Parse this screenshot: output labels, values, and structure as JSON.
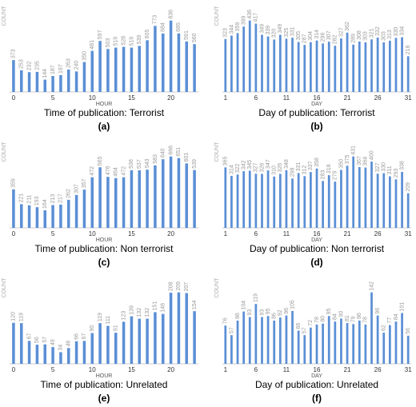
{
  "chart_data": [
    {
      "type": "bar",
      "title": "Time of publication: Terrorist",
      "caption": "(a)",
      "x_label": "HOUR",
      "y_label": "COUNT",
      "color": "#5b8fd6",
      "categories": [
        "0",
        null,
        null,
        null,
        null,
        "5",
        null,
        null,
        null,
        null,
        "10",
        null,
        null,
        null,
        null,
        "15",
        null,
        null,
        null,
        null,
        "20",
        null,
        null,
        null
      ],
      "values": [
        373,
        253,
        232,
        235,
        144,
        187,
        197,
        263,
        240,
        350,
        481,
        597,
        503,
        519,
        528,
        519,
        539,
        605,
        773,
        684,
        836,
        685,
        591,
        560
      ]
    },
    {
      "type": "bar",
      "title": "Day of publication: Terrorist",
      "caption": "(b)",
      "x_label": "DAY",
      "y_label": "COUNT",
      "color": "#5b8fd6",
      "categories": [
        "1",
        null,
        null,
        null,
        null,
        "6",
        null,
        null,
        null,
        null,
        "11",
        null,
        null,
        null,
        null,
        "16",
        null,
        null,
        null,
        null,
        "21",
        null,
        null,
        null,
        null,
        "26",
        null,
        null,
        null,
        null,
        "31"
      ],
      "values": [
        323,
        344,
        359,
        399,
        436,
        417,
        349,
        339,
        320,
        349,
        325,
        331,
        305,
        287,
        304,
        314,
        296,
        307,
        282,
        327,
        362,
        289,
        308,
        303,
        321,
        332,
        303,
        313,
        330,
        334,
        218
      ]
    },
    {
      "type": "bar",
      "title": "Time of publication: Non terrorist",
      "caption": "(c)",
      "x_label": "HOUR",
      "y_label": "COUNT",
      "color": "#5b8fd6",
      "categories": [
        "0",
        null,
        null,
        null,
        null,
        "5",
        null,
        null,
        null,
        null,
        "10",
        null,
        null,
        null,
        null,
        "15",
        null,
        null,
        null,
        null,
        "20",
        null,
        null,
        null
      ],
      "values": [
        359,
        221,
        211,
        193,
        164,
        213,
        217,
        262,
        307,
        357,
        472,
        565,
        476,
        464,
        472,
        538,
        537,
        543,
        583,
        640,
        666,
        651,
        601,
        539
      ]
    },
    {
      "type": "bar",
      "title": "Day of publication: Non terrorist",
      "caption": "(d)",
      "x_label": "DAY",
      "y_label": "COUNT",
      "color": "#5b8fd6",
      "categories": [
        "1",
        null,
        null,
        null,
        null,
        "6",
        null,
        null,
        null,
        null,
        "11",
        null,
        null,
        null,
        null,
        "16",
        null,
        null,
        null,
        null,
        "21",
        null,
        null,
        null,
        null,
        "26",
        null,
        null,
        null,
        null,
        "31"
      ],
      "values": [
        365,
        314,
        322,
        342,
        345,
        327,
        326,
        347,
        310,
        326,
        348,
        298,
        331,
        312,
        337,
        358,
        283,
        318,
        279,
        350,
        375,
        431,
        367,
        364,
        400,
        327,
        330,
        311,
        293,
        338,
        209
      ]
    },
    {
      "type": "bar",
      "title": "Time of publication: Unrelated",
      "caption": "(e)",
      "x_label": "HOUR",
      "y_label": "COUNT",
      "color": "#5b8fd6",
      "categories": [
        "0",
        null,
        null,
        null,
        null,
        "5",
        null,
        null,
        null,
        null,
        "10",
        null,
        null,
        null,
        null,
        "15",
        null,
        null,
        null,
        null,
        "20",
        null,
        null,
        null
      ],
      "values": [
        120,
        119,
        67,
        56,
        57,
        49,
        34,
        46,
        66,
        67,
        90,
        119,
        111,
        91,
        123,
        139,
        132,
        132,
        151,
        146,
        208,
        209,
        207,
        154
      ]
    },
    {
      "type": "bar",
      "title": "Day of publication: Unrelated",
      "caption": "(f)",
      "x_label": "DAY",
      "y_label": "COUNT",
      "color": "#5b8fd6",
      "categories": [
        "1",
        null,
        null,
        null,
        null,
        "6",
        null,
        null,
        null,
        null,
        "11",
        null,
        null,
        null,
        null,
        "16",
        null,
        null,
        null,
        null,
        "21",
        null,
        null,
        null,
        null,
        "26",
        null,
        null,
        null,
        null,
        "31"
      ],
      "values": [
        76,
        57,
        86,
        104,
        93,
        119,
        93,
        95,
        86,
        92,
        96,
        105,
        66,
        57,
        72,
        78,
        80,
        95,
        84,
        90,
        81,
        79,
        86,
        78,
        142,
        96,
        62,
        77,
        84,
        101,
        56
      ]
    }
  ]
}
